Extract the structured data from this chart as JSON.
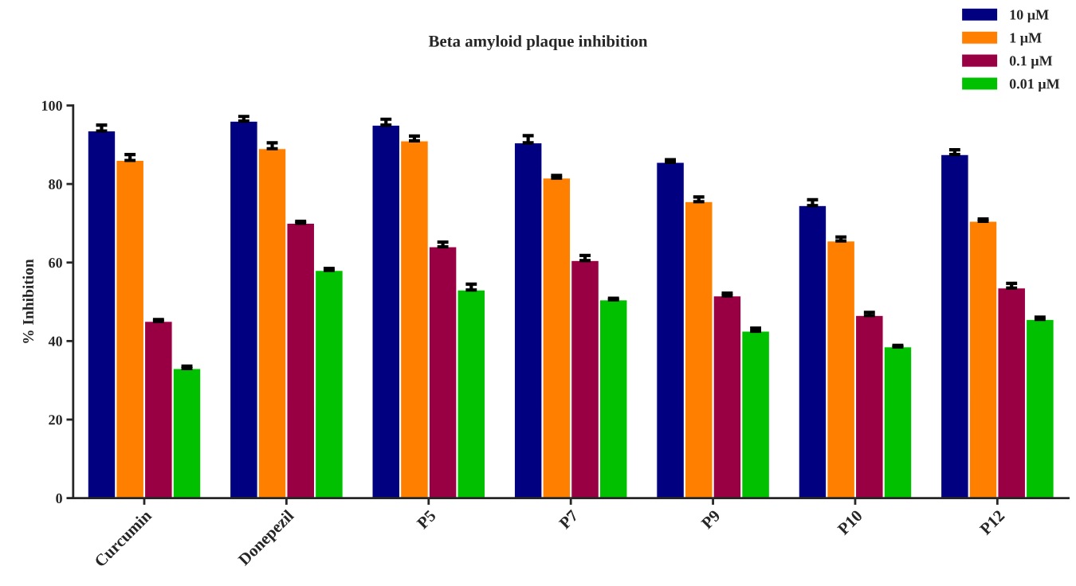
{
  "chart_data": {
    "type": "bar",
    "title": "Beta amyloid plaque inhibition",
    "ylabel": "% Inhibition",
    "categories": [
      "Curcumin",
      "Donepezil",
      "P5",
      "P7",
      "P9",
      "P10",
      "P12"
    ],
    "series": [
      {
        "name": "10 µM",
        "color": "#000080",
        "values": [
          93.5,
          96,
          95,
          90.5,
          85.5,
          74.5,
          87.5
        ],
        "errors": [
          1.5,
          1.2,
          1.5,
          1.8,
          0.7,
          1.5,
          1.2
        ]
      },
      {
        "name": "1 µM",
        "color": "#ff8000",
        "values": [
          86,
          89,
          91,
          81.5,
          75.5,
          65.5,
          70.5
        ],
        "errors": [
          1.5,
          1.5,
          1.2,
          0.7,
          1.2,
          1.0,
          0.6
        ]
      },
      {
        "name": "0.1 µM",
        "color": "#990044",
        "values": [
          45,
          70,
          64,
          60.5,
          51.5,
          46.5,
          53.5
        ],
        "errors": [
          0.5,
          0.5,
          1.2,
          1.3,
          0.7,
          0.8,
          1.2
        ]
      },
      {
        "name": "0.01 µM",
        "color": "#00c000",
        "values": [
          33,
          58,
          53,
          50.5,
          42.5,
          38.5,
          45.5
        ],
        "errors": [
          0.6,
          0.5,
          1.5,
          0.4,
          0.8,
          0.4,
          0.6
        ]
      }
    ],
    "ylim": [
      0,
      100
    ],
    "yticks": [
      0,
      20,
      40,
      60,
      80,
      100
    ],
    "grid": false,
    "legend": "top right"
  }
}
